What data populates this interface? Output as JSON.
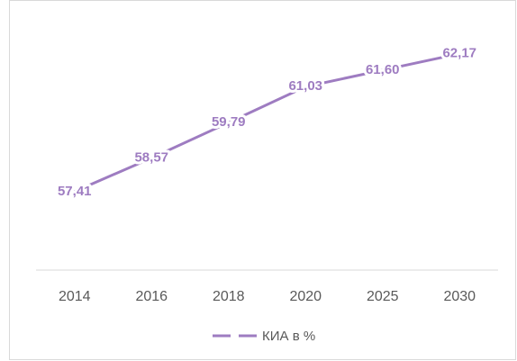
{
  "chart_data": {
    "type": "line",
    "categories": [
      "2014",
      "2016",
      "2018",
      "2020",
      "2025",
      "2030"
    ],
    "series": [
      {
        "name": "КИА в %",
        "color": "#9e7cc1",
        "values": [
          57.41,
          58.57,
          59.79,
          61.03,
          61.6,
          62.17
        ],
        "value_labels": [
          "57,41",
          "58,57",
          "59,79",
          "61,03",
          "61,60",
          "62,17"
        ]
      }
    ],
    "ylim": [
      54.7,
      63.4
    ],
    "legend": "bottom"
  }
}
